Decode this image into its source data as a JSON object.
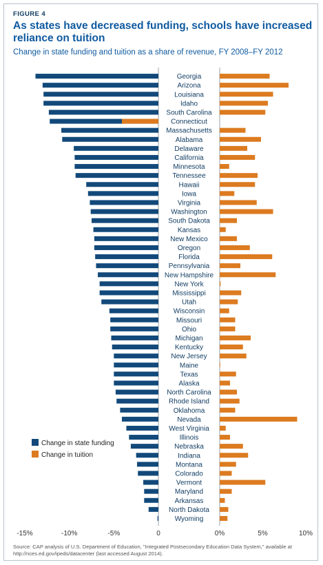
{
  "figure_label": "FIGURE 4",
  "headline": "As states have decreased funding, schools have increased reliance on tuition",
  "subtitle": "Change in state funding and tuition as a share of revenue, FY 2008–FY 2012",
  "source": "Source: CAP analysis of U.S. Department of Education, \"Integrated Postsecondary Education Data System,\" available at http://nces.ed.gov/ipeds/datacenter (last accessed August 2014).",
  "colors": {
    "state_funding": "#12497a",
    "tuition": "#dc7b20",
    "divider": "#7f8a94"
  },
  "chart_data": {
    "type": "bar",
    "orientation": "horizontal",
    "categories": [
      "Georgia",
      "Arizona",
      "Louisiana",
      "Idaho",
      "South Carolina",
      "Connecticut",
      "Massachusetts",
      "Alabama",
      "Delaware",
      "California",
      "Minnesota",
      "Tennessee",
      "Hawaii",
      "Iowa",
      "Virginia",
      "Washington",
      "South Dakota",
      "Kansas",
      "New Mexico",
      "Oregon",
      "Florida",
      "Pennsylvania",
      "New Hampshire",
      "New York",
      "Mississippi",
      "Utah",
      "Wisconsin",
      "Missouri",
      "Ohio",
      "Michigan",
      "Kentucky",
      "New Jersey",
      "Maine",
      "Texas",
      "Alaska",
      "North Carolina",
      "Rhode Island",
      "Oklahoma",
      "Nevada",
      "West Virginia",
      "Illinois",
      "Nebraska",
      "Indiana",
      "Montana",
      "Colorado",
      "Vermont",
      "Maryland",
      "Arkansas",
      "North Dakota",
      "Wyoming"
    ],
    "series": [
      {
        "name": "Change in state funding",
        "values": [
          -13.8,
          -13.0,
          -12.9,
          -12.9,
          -12.3,
          -12.2,
          -10.9,
          -10.8,
          -9.5,
          -9.4,
          -9.4,
          -9.3,
          -8.1,
          -7.9,
          -7.7,
          -7.6,
          -7.5,
          -7.3,
          -7.2,
          -7.2,
          -7.1,
          -7.0,
          -6.8,
          -6.6,
          -6.6,
          -6.4,
          -5.5,
          -5.4,
          -5.4,
          -5.3,
          -5.2,
          -5.0,
          -5.0,
          -5.0,
          -5.0,
          -4.8,
          -4.7,
          -4.3,
          -4.1,
          -3.6,
          -3.3,
          -3.1,
          -2.5,
          -2.4,
          -2.3,
          -1.7,
          -1.6,
          -1.6,
          -1.1,
          -0.1
        ]
      },
      {
        "name": "Change in tuition",
        "values": [
          5.8,
          8.0,
          6.2,
          5.6,
          5.3,
          -4.1,
          3.0,
          4.8,
          3.2,
          4.1,
          1.1,
          4.4,
          4.1,
          1.7,
          4.3,
          6.2,
          2.0,
          0.7,
          2.0,
          3.5,
          6.1,
          2.4,
          6.5,
          0.1,
          2.5,
          2.1,
          1.1,
          1.8,
          1.8,
          3.6,
          2.7,
          3.1,
          0.0,
          1.9,
          1.2,
          2.0,
          2.3,
          1.8,
          9.0,
          0.7,
          1.2,
          2.7,
          3.3,
          1.9,
          1.4,
          5.3,
          1.4,
          0.6,
          1.0,
          0.9
        ]
      }
    ],
    "xlim_state": [
      -15,
      0
    ],
    "xlim_tuition": [
      0,
      10
    ],
    "xticks_state": [
      -15,
      -10,
      -5,
      0
    ],
    "xtick_labels_state": [
      "-15%",
      "-10%",
      "-5%",
      "0"
    ],
    "xticks_tuition": [
      0,
      5,
      10
    ],
    "xtick_labels_tuition": [
      "0%",
      "5%",
      "10%"
    ],
    "legend": [
      "Change in state funding",
      "Change in tuition"
    ],
    "legend_position": "lower-left",
    "grid": false
  }
}
